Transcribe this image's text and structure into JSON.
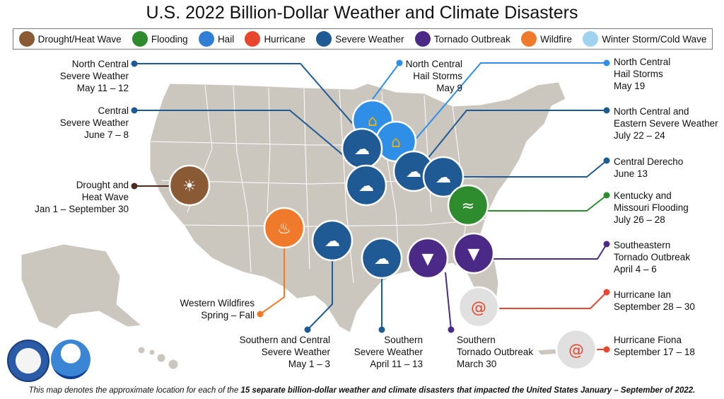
{
  "title": "U.S. 2022 Billion-Dollar Weather and Climate Disasters",
  "legend": [
    {
      "label": "Drought/Heat Wave",
      "icon": "drought-icon",
      "color": "#8a5a34"
    },
    {
      "label": "Flooding",
      "icon": "flood-icon",
      "color": "#2e8b2e"
    },
    {
      "label": "Hail",
      "icon": "hail-icon",
      "color": "#2f7fd6"
    },
    {
      "label": "Hurricane",
      "icon": "hurricane-icon",
      "color": "#e8472d"
    },
    {
      "label": "Severe Weather",
      "icon": "severe-weather-icon",
      "color": "#1f5a95"
    },
    {
      "label": "Tornado Outbreak",
      "icon": "tornado-icon",
      "color": "#4a2a86"
    },
    {
      "label": "Wildfire",
      "icon": "wildfire-icon",
      "color": "#f07a2b"
    },
    {
      "label": "Winter Storm/Cold Wave",
      "icon": "winter-storm-icon",
      "color": "#9fd3ef"
    }
  ],
  "events": {
    "nc_severe_may": {
      "line1": "North Central",
      "line2": "Severe Weather",
      "line3": "May 11 – 12",
      "type": "severe-weather",
      "color": "#1f5a95"
    },
    "central_severe": {
      "line1": "Central",
      "line2": "Severe Weather",
      "line3": "June 7 – 8",
      "type": "severe-weather",
      "color": "#1f5a95"
    },
    "drought": {
      "line1": "Drought and",
      "line2": "Heat Wave",
      "line3": "Jan 1 – September 30",
      "type": "drought",
      "color": "#4a2a1a"
    },
    "nc_hail_may9": {
      "line1": "North Central",
      "line2": "Hail Storms",
      "line3": "May 9",
      "type": "hail",
      "color": "#2f8fe6"
    },
    "nc_hail_may19": {
      "line1": "North Central",
      "line2": "Hail Storms",
      "line3": "May 19",
      "type": "hail",
      "color": "#2f8fe6"
    },
    "nc_eastern_severe": {
      "line1": "North Central and",
      "line2": "Eastern Severe Weather",
      "line3": "July 22 – 24",
      "type": "severe-weather",
      "color": "#1f5a95"
    },
    "central_derecho": {
      "line1": "Central Derecho",
      "line2": "June 13",
      "type": "severe-weather",
      "color": "#1f5a95"
    },
    "ky_mo_flooding": {
      "line1": "Kentucky and",
      "line2": "Missouri Flooding",
      "line3": "July 26 – 28",
      "type": "flooding",
      "color": "#2e8b2e"
    },
    "se_tornado": {
      "line1": "Southeastern",
      "line2": "Tornado Outbreak",
      "line3": "April 4 – 6",
      "type": "tornado",
      "color": "#4a2a86"
    },
    "hurricane_ian": {
      "line1": "Hurricane Ian",
      "line2": "September 28 – 30",
      "type": "hurricane",
      "color": "#e8472d"
    },
    "hurricane_fiona": {
      "line1": "Hurricane Fiona",
      "line2": "September 17 – 18",
      "type": "hurricane",
      "color": "#e8472d"
    },
    "western_wildfires": {
      "line1": "Western Wildfires",
      "line2": "Spring – Fall",
      "type": "wildfire",
      "color": "#f07a2b"
    },
    "s_c_severe": {
      "line1": "Southern and Central",
      "line2": "Severe Weather",
      "line3": "May 1 – 3",
      "type": "severe-weather",
      "color": "#1f5a95"
    },
    "southern_severe": {
      "line1": "Southern",
      "line2": "Severe Weather",
      "line3": "April 11 – 13",
      "type": "severe-weather",
      "color": "#1f5a95"
    },
    "southern_tornado": {
      "line1": "Southern",
      "line2": "Tornado Outbreak",
      "line3": "March 30",
      "type": "tornado",
      "color": "#4a2a86"
    }
  },
  "footnote": {
    "pre": "This map denotes the approximate location for each of the ",
    "bold": "15 separate billion-dollar weather and climate disasters that impacted the United States January – September of 2022.",
    "post": ""
  },
  "logos": [
    "department-of-commerce-seal",
    "noaa-logo"
  ]
}
